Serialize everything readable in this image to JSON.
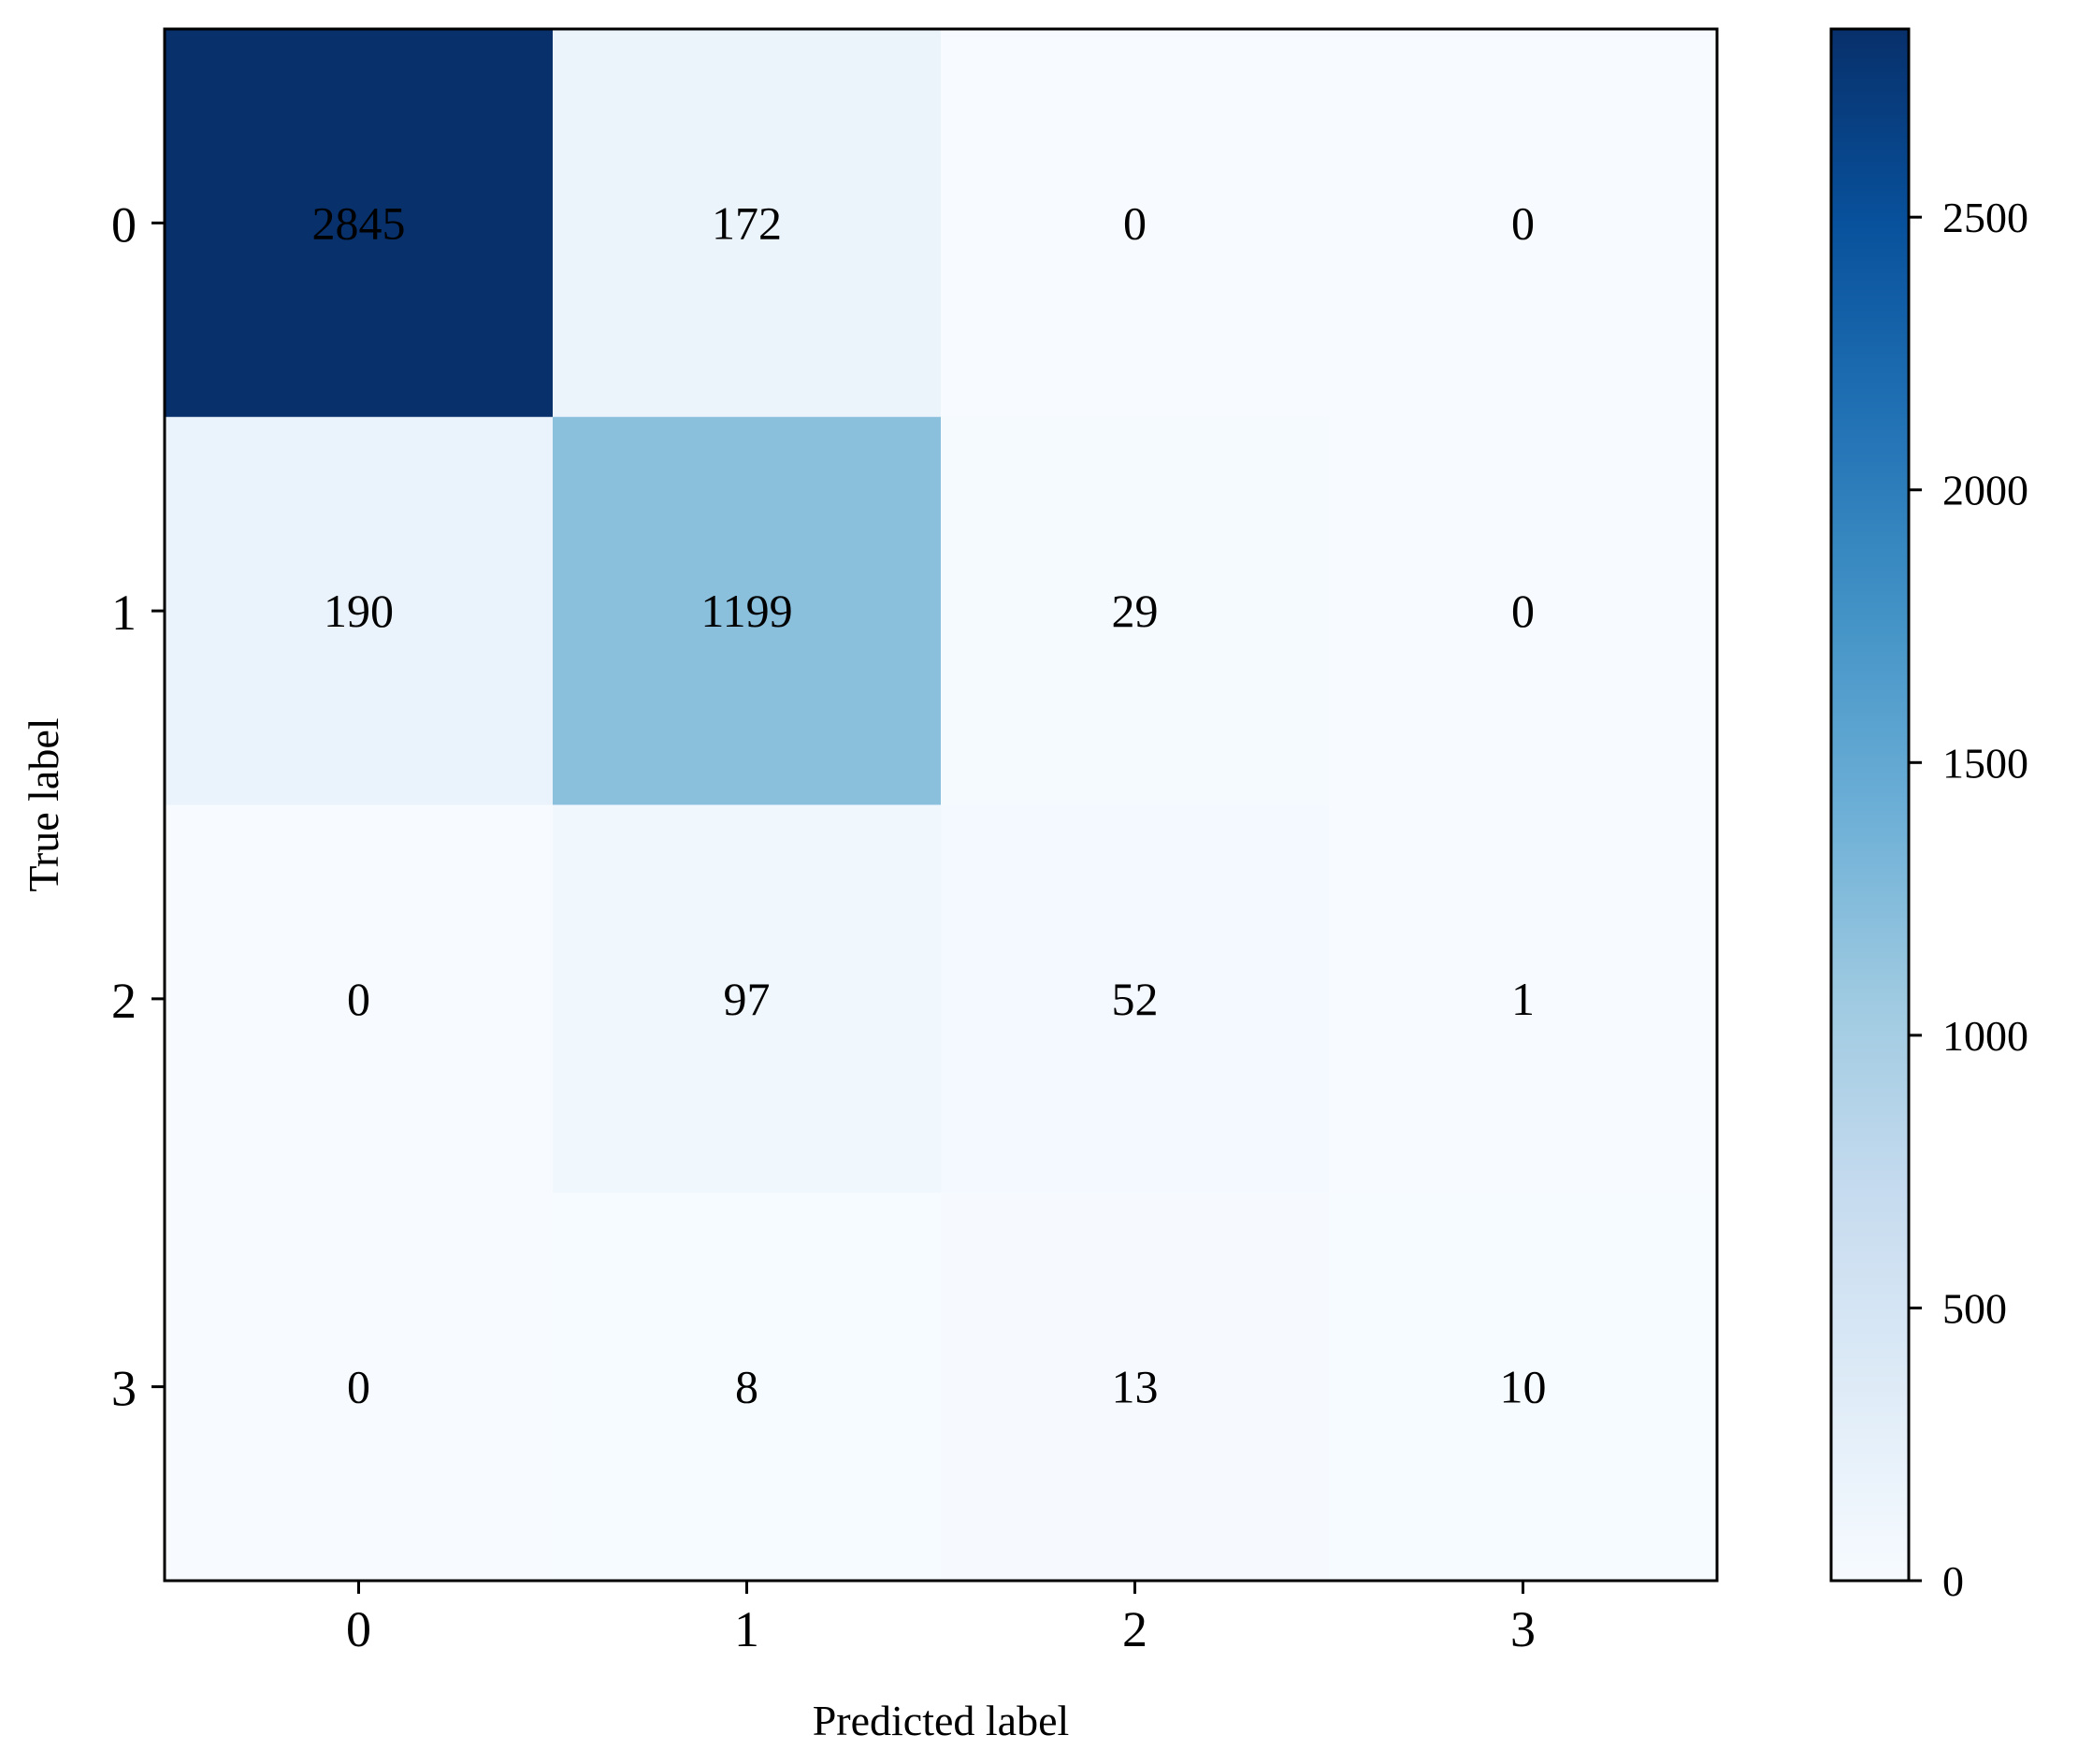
{
  "chart_data": {
    "type": "heatmap",
    "title": "",
    "xlabel": "Predicted label",
    "ylabel": "True label",
    "x_categories": [
      "0",
      "1",
      "2",
      "3"
    ],
    "y_categories": [
      "0",
      "1",
      "2",
      "3"
    ],
    "matrix": [
      [
        2845,
        172,
        0,
        0
      ],
      [
        190,
        1199,
        29,
        0
      ],
      [
        0,
        97,
        52,
        1
      ],
      [
        0,
        8,
        13,
        10
      ]
    ],
    "colormap": "Blues",
    "colorbar": {
      "range": [
        0,
        2845
      ],
      "ticks": [
        "0",
        "500",
        "1000",
        "1500",
        "2000",
        "2500"
      ]
    },
    "text_color": "#000000",
    "grid": false
  }
}
